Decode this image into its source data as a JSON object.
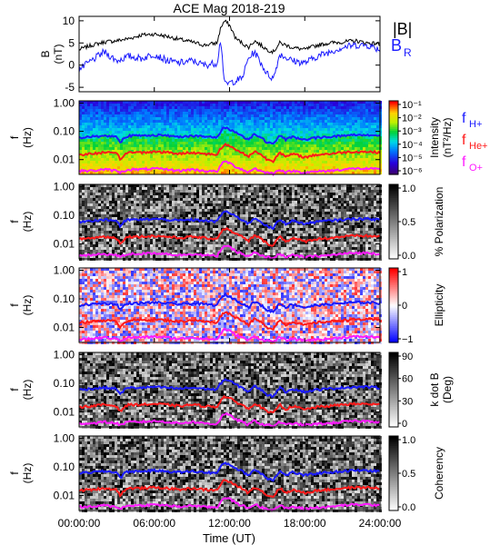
{
  "title": "ACE Mag 2018-219",
  "colors": {
    "B_total": "#000000",
    "B_R": "#1a1aff",
    "f_H": "#1a1aff",
    "f_He": "#ff1a1a",
    "f_O": "#ff1aff"
  },
  "x_axis": {
    "label": "Time (UT)",
    "range_hours": [
      0,
      24
    ],
    "tick_hours": [
      0,
      6,
      12,
      18,
      24
    ],
    "tick_labels": [
      "00:00:00",
      "06:00:00",
      "12:00:00",
      "18:00:00",
      "24:00:00"
    ]
  },
  "chart_data": [
    {
      "type": "line",
      "ylabel_line1": "B",
      "ylabel_line2": "(nT)",
      "ylim": [
        -6,
        11
      ],
      "yticks": [
        -5,
        0,
        5,
        10
      ],
      "ytick_labels": [
        "-5",
        "0",
        "5",
        "10"
      ],
      "legend_location": "top-right",
      "series": [
        {
          "name": "|B|",
          "color_key": "B_total",
          "x": [
            0,
            1,
            2,
            3,
            4,
            5,
            6,
            7,
            8,
            9,
            10,
            11,
            11.3,
            11.6,
            12,
            12.5,
            13,
            13.5,
            14,
            14.5,
            15,
            15.5,
            16,
            17,
            18,
            19,
            20,
            21,
            22,
            23,
            24
          ],
          "y": [
            3.5,
            4.5,
            5.2,
            5.5,
            6.0,
            6.8,
            7.0,
            6.5,
            5.8,
            5.2,
            4.5,
            5.0,
            8.5,
            10.0,
            9.0,
            6.0,
            5.0,
            4.0,
            5.5,
            4.5,
            3.5,
            3.0,
            5.0,
            4.0,
            3.5,
            4.5,
            5.0,
            5.2,
            5.5,
            5.0,
            4.8
          ]
        },
        {
          "name": "B_R",
          "legend_main": "B",
          "legend_sub": "R",
          "color_key": "B_R",
          "x": [
            0,
            1,
            2,
            3,
            4,
            5,
            6,
            7,
            8,
            9,
            10,
            11,
            11.3,
            11.6,
            12,
            12.5,
            13,
            13.5,
            14,
            14.5,
            15,
            15.5,
            16,
            17,
            18,
            19,
            20,
            21,
            22,
            23,
            24
          ],
          "y": [
            -1.0,
            1.0,
            3.0,
            1.0,
            2.0,
            1.5,
            2.5,
            1.0,
            0.5,
            1.0,
            0.0,
            0.5,
            6.0,
            -4.5,
            -4.0,
            -3.5,
            -3.0,
            1.5,
            3.0,
            0.5,
            -2.0,
            -3.0,
            2.5,
            1.0,
            0.5,
            2.0,
            3.0,
            4.0,
            4.5,
            4.5,
            3.5
          ]
        }
      ]
    },
    {
      "type": "heatmap",
      "ylabel_line1": "f",
      "ylabel_line2": "(Hz)",
      "ylim": [
        0.003,
        1.2
      ],
      "log_y": true,
      "yticks": [
        0.01,
        0.1,
        1.0
      ],
      "ytick_labels": [
        "0.01",
        "0.10",
        "1.00"
      ],
      "colorbar": {
        "label_line1": "Intensity",
        "label_line2": "(nT²/Hz)",
        "ticks": [
          "10⁻⁶",
          "10⁻⁵",
          "10⁻⁴",
          "10⁻³",
          "10⁻²",
          "10⁻¹"
        ],
        "scale": "rainbow"
      },
      "legend_location": "right",
      "legend": [
        {
          "main": "f",
          "sub": "H+",
          "color_key": "f_H"
        },
        {
          "main": "f",
          "sub": "He+",
          "color_key": "f_He"
        },
        {
          "main": "f",
          "sub": "O+",
          "color_key": "f_O"
        }
      ],
      "background": "spectrogram"
    },
    {
      "type": "heatmap",
      "ylabel_line1": "f",
      "ylabel_line2": "(Hz)",
      "ylim": [
        0.003,
        1.2
      ],
      "log_y": true,
      "yticks": [
        0.01,
        0.1,
        1.0
      ],
      "ytick_labels": [
        "0.01",
        "0.10",
        "1.00"
      ],
      "colorbar": {
        "label_line1": "% Polarization",
        "label_line2": "",
        "ticks": [
          "0.0",
          "0.5",
          "1.0"
        ],
        "scale": "gray"
      },
      "background": "noise"
    },
    {
      "type": "heatmap",
      "ylabel_line1": "f",
      "ylabel_line2": "(Hz)",
      "ylim": [
        0.003,
        1.2
      ],
      "log_y": true,
      "yticks": [
        0.01,
        0.1,
        1.0
      ],
      "ytick_labels": [
        "0.01",
        "0.10",
        "1.00"
      ],
      "colorbar": {
        "label_line1": "Ellipticity",
        "label_line2": "",
        "ticks": [
          "−1",
          "0",
          "1"
        ],
        "scale": "bwr"
      },
      "background": "ellipticity"
    },
    {
      "type": "heatmap",
      "ylabel_line1": "f",
      "ylabel_line2": "(Hz)",
      "ylim": [
        0.003,
        1.2
      ],
      "log_y": true,
      "yticks": [
        0.01,
        0.1,
        1.0
      ],
      "ytick_labels": [
        "0.01",
        "0.10",
        "1.00"
      ],
      "colorbar": {
        "label_line1": "k dot B",
        "label_line2": "(Deg)",
        "ticks": [
          "0",
          "30",
          "60",
          "90"
        ],
        "scale": "gray"
      },
      "background": "noise"
    },
    {
      "type": "heatmap",
      "ylabel_line1": "f",
      "ylabel_line2": "(Hz)",
      "ylim": [
        0.003,
        1.2
      ],
      "log_y": true,
      "yticks": [
        0.01,
        0.1,
        1.0
      ],
      "ytick_labels": [
        "0.01",
        "0.10",
        "1.00"
      ],
      "colorbar": {
        "label_line1": "Coherency",
        "label_line2": "",
        "ticks": [
          "0.0",
          "0.5",
          "1.0"
        ],
        "scale": "gray"
      },
      "background": "noise"
    }
  ],
  "gyrofrequency_traces": {
    "x": [
      0,
      1,
      2,
      3,
      3.3,
      3.6,
      4,
      5,
      6,
      7,
      8,
      9,
      10,
      11,
      11.3,
      11.6,
      12,
      12.5,
      13,
      13.5,
      14,
      14.5,
      15,
      15.5,
      16,
      16.5,
      17,
      18,
      19,
      20,
      21,
      22,
      23,
      24
    ],
    "f_H": [
      0.06,
      0.065,
      0.07,
      0.065,
      0.04,
      0.06,
      0.07,
      0.07,
      0.075,
      0.07,
      0.065,
      0.07,
      0.065,
      0.06,
      0.1,
      0.14,
      0.12,
      0.09,
      0.07,
      0.05,
      0.08,
      0.06,
      0.04,
      0.035,
      0.07,
      0.05,
      0.065,
      0.05,
      0.06,
      0.065,
      0.07,
      0.075,
      0.075,
      0.07
    ],
    "f_He": [
      0.015,
      0.016,
      0.018,
      0.016,
      0.01,
      0.015,
      0.018,
      0.018,
      0.019,
      0.018,
      0.016,
      0.018,
      0.016,
      0.015,
      0.025,
      0.035,
      0.03,
      0.022,
      0.018,
      0.012,
      0.02,
      0.015,
      0.01,
      0.009,
      0.018,
      0.012,
      0.016,
      0.012,
      0.015,
      0.016,
      0.018,
      0.019,
      0.019,
      0.018
    ],
    "f_O": [
      0.004,
      0.004,
      0.0045,
      0.004,
      0.0035,
      0.004,
      0.0045,
      0.0045,
      0.0048,
      0.0045,
      0.004,
      0.0045,
      0.004,
      0.0038,
      0.006,
      0.009,
      0.0075,
      0.0055,
      0.0045,
      0.0035,
      0.005,
      0.0038,
      0.0035,
      0.0032,
      0.0045,
      0.0035,
      0.004,
      0.0035,
      0.0038,
      0.004,
      0.0045,
      0.0048,
      0.0048,
      0.0045
    ]
  }
}
